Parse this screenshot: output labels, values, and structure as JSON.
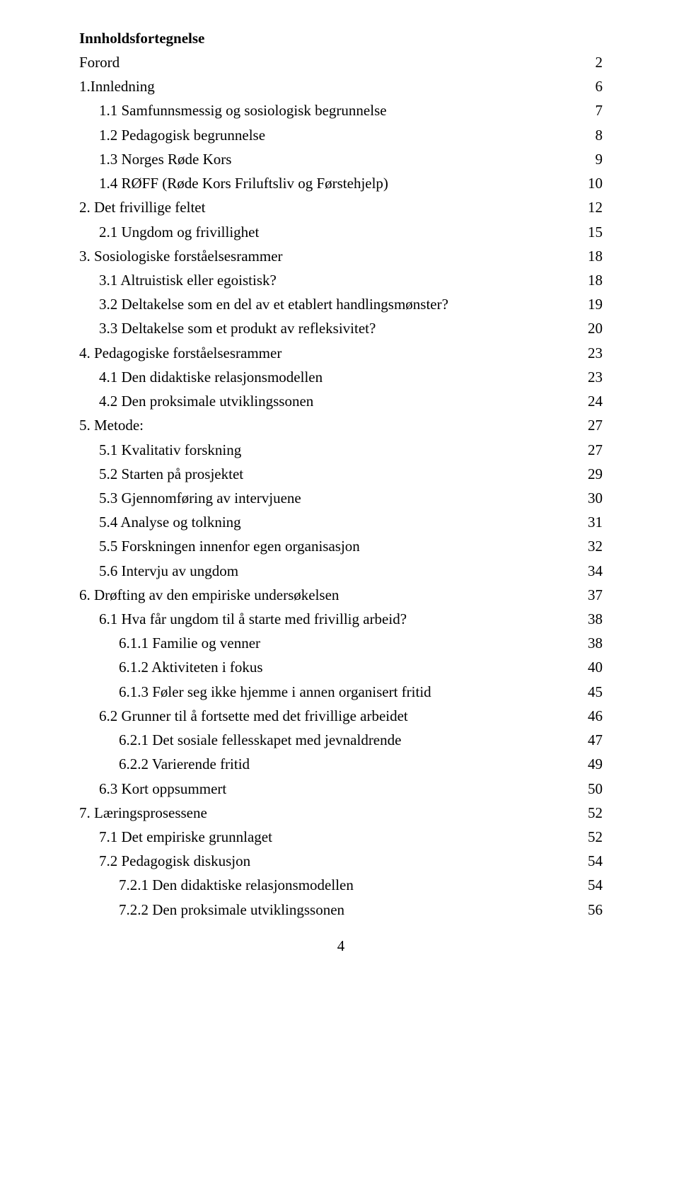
{
  "title": "Innholdsfortegnelse",
  "page_number": "4",
  "entries": [
    {
      "label": "Forord",
      "page": "2",
      "indent": 0
    },
    {
      "label": "1.Innledning",
      "page": "6",
      "indent": 0
    },
    {
      "label": "1.1 Samfunnsmessig og sosiologisk begrunnelse",
      "page": "7",
      "indent": 1
    },
    {
      "label": "1.2 Pedagogisk begrunnelse",
      "page": "8",
      "indent": 1
    },
    {
      "label": "1.3 Norges Røde Kors",
      "page": "9",
      "indent": 1
    },
    {
      "label": "1.4 RØFF (Røde Kors Friluftsliv og Førstehjelp)",
      "page": "10",
      "indent": 1
    },
    {
      "label": "2. Det frivillige feltet",
      "page": "12",
      "indent": 0
    },
    {
      "label": "2.1 Ungdom og frivillighet",
      "page": "15",
      "indent": 1
    },
    {
      "label": "3. Sosiologiske forståelsesrammer",
      "page": "18",
      "indent": 0
    },
    {
      "label": "3.1 Altruistisk eller egoistisk?",
      "page": "18",
      "indent": 1
    },
    {
      "label": "3.2 Deltakelse som en del av et etablert handlingsmønster?",
      "page": "19",
      "indent": 1
    },
    {
      "label": "3.3 Deltakelse som et produkt av refleksivitet?",
      "page": "20",
      "indent": 1
    },
    {
      "label": "4. Pedagogiske forståelsesrammer",
      "page": "23",
      "indent": 0
    },
    {
      "label": "4.1 Den didaktiske relasjonsmodellen",
      "page": "23",
      "indent": 1
    },
    {
      "label": "4.2 Den proksimale utviklingssonen",
      "page": "24",
      "indent": 1
    },
    {
      "label": "5. Metode:",
      "page": "27",
      "indent": 0
    },
    {
      "label": "5.1 Kvalitativ forskning",
      "page": "27",
      "indent": 1
    },
    {
      "label": "5.2 Starten på prosjektet",
      "page": "29",
      "indent": 1
    },
    {
      "label": "5.3 Gjennomføring av intervjuene",
      "page": "30",
      "indent": 1
    },
    {
      "label": "5.4 Analyse og tolkning",
      "page": "31",
      "indent": 1
    },
    {
      "label": "5.5 Forskningen innenfor egen organisasjon",
      "page": "32",
      "indent": 1
    },
    {
      "label": "5.6 Intervju av ungdom",
      "page": "34",
      "indent": 1
    },
    {
      "label": "6. Drøfting av den empiriske undersøkelsen",
      "page": "37",
      "indent": 0
    },
    {
      "label": "6.1 Hva får ungdom til å starte med frivillig arbeid?",
      "page": "38",
      "indent": 1
    },
    {
      "label": "6.1.1 Familie og venner",
      "page": "38",
      "indent": 2
    },
    {
      "label": "6.1.2 Aktiviteten i fokus",
      "page": "40",
      "indent": 2
    },
    {
      "label": "6.1.3 Føler seg ikke hjemme i annen organisert fritid",
      "page": "45",
      "indent": 2
    },
    {
      "label": "6.2 Grunner til å fortsette med det frivillige arbeidet",
      "page": "46",
      "indent": 1
    },
    {
      "label": "6.2.1 Det sosiale fellesskapet med jevnaldrende",
      "page": "47",
      "indent": 2
    },
    {
      "label": "6.2.2 Varierende fritid",
      "page": "49",
      "indent": 2
    },
    {
      "label": "6.3 Kort oppsummert",
      "page": "50",
      "indent": 1
    },
    {
      "label": "7. Læringsprosessene",
      "page": "52",
      "indent": 0
    },
    {
      "label": "7.1 Det empiriske grunnlaget",
      "page": "52",
      "indent": 1
    },
    {
      "label": "7.2 Pedagogisk diskusjon",
      "page": "54",
      "indent": 1
    },
    {
      "label": "7.2.1 Den didaktiske relasjonsmodellen",
      "page": "54",
      "indent": 2
    },
    {
      "label": "7.2.2 Den proksimale utviklingssonen",
      "page": "56",
      "indent": 2
    }
  ]
}
